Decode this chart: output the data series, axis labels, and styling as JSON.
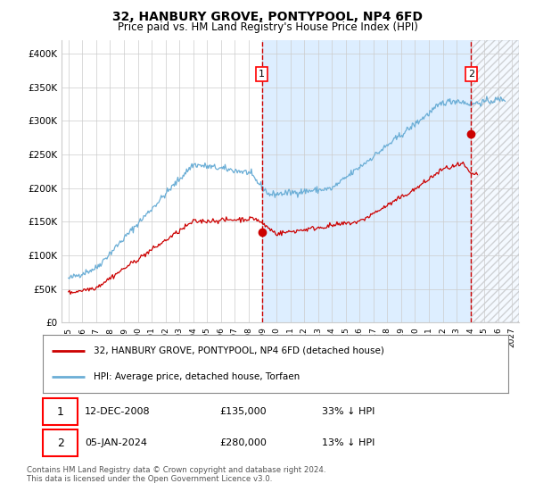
{
  "title": "32, HANBURY GROVE, PONTYPOOL, NP4 6FD",
  "subtitle": "Price paid vs. HM Land Registry's House Price Index (HPI)",
  "legend_line1": "32, HANBURY GROVE, PONTYPOOL, NP4 6FD (detached house)",
  "legend_line2": "HPI: Average price, detached house, Torfaen",
  "annotation1_label": "1",
  "annotation1_date": "12-DEC-2008",
  "annotation1_price": "£135,000",
  "annotation1_hpi": "33% ↓ HPI",
  "annotation2_label": "2",
  "annotation2_date": "05-JAN-2024",
  "annotation2_price": "£280,000",
  "annotation2_hpi": "13% ↓ HPI",
  "footnote": "Contains HM Land Registry data © Crown copyright and database right 2024.\nThis data is licensed under the Open Government Licence v3.0.",
  "sale1_x": 2008.95,
  "sale1_y": 135000,
  "sale2_x": 2024.04,
  "sale2_y": 280000,
  "hpi_color": "#6baed6",
  "price_color": "#cc0000",
  "vline_color": "#cc0000",
  "background_color": "#ffffff",
  "grid_color": "#cccccc",
  "shade_color": "#ddeeff",
  "ylim": [
    0,
    420000
  ],
  "xlim": [
    1994.5,
    2027.5
  ],
  "ylabel_ticks": [
    0,
    50000,
    100000,
    150000,
    200000,
    250000,
    300000,
    350000,
    400000
  ],
  "xticks": [
    1995,
    1996,
    1997,
    1998,
    1999,
    2000,
    2001,
    2002,
    2003,
    2004,
    2005,
    2006,
    2007,
    2008,
    2009,
    2010,
    2011,
    2012,
    2013,
    2014,
    2015,
    2016,
    2017,
    2018,
    2019,
    2020,
    2021,
    2022,
    2023,
    2024,
    2025,
    2026,
    2027
  ]
}
